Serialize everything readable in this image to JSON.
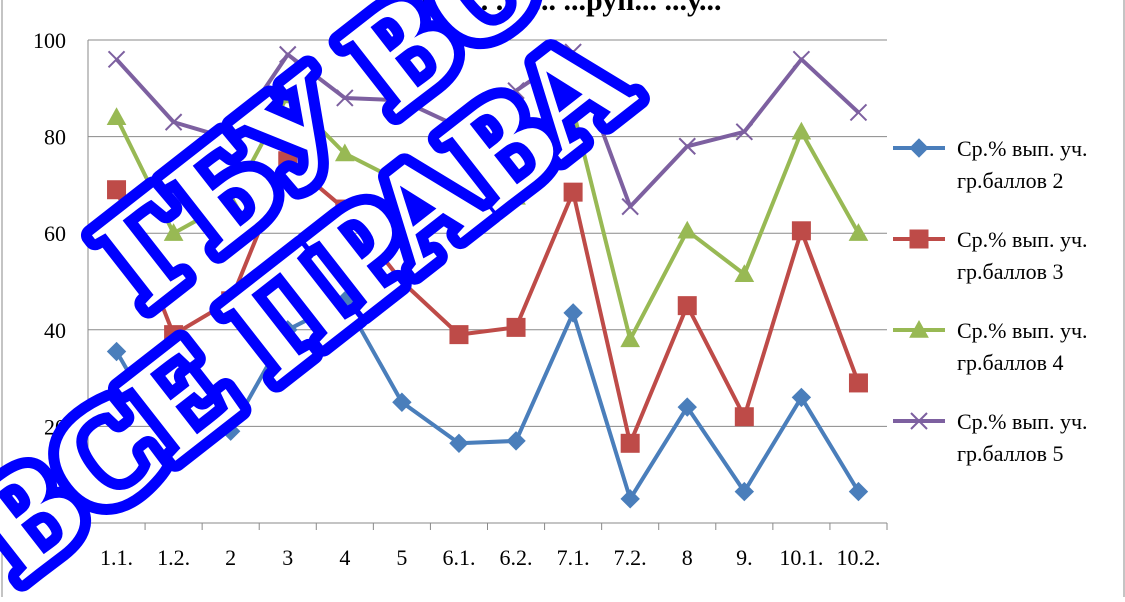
{
  "chart_data": {
    "type": "line",
    "title": "...ред... ...д... ...руп... ...у...",
    "xlabel": "",
    "ylabel": "",
    "ylim": [
      0,
      100
    ],
    "yticks": [
      0,
      20,
      40,
      60,
      80,
      100
    ],
    "grid": "horizontal",
    "legend_position": "right",
    "categories": [
      "1.1.",
      "1.2.",
      "2",
      "3",
      "4",
      "5",
      "6.1.",
      "6.2.",
      "7.1.",
      "7.2.",
      "8",
      "9.",
      "10.1.",
      "10.2."
    ],
    "series": [
      {
        "name_line1": "Ср.% вып. уч.",
        "name_line2": "гр.баллов 2",
        "color": "#4a7ebb",
        "marker": "diamond",
        "values": [
          35.5,
          15,
          19,
          40,
          46,
          25,
          16.5,
          17,
          43.5,
          5,
          24,
          6.5,
          26,
          6.5
        ]
      },
      {
        "name_line1": "Ср.% вып. уч.",
        "name_line2": "гр.баллов 3",
        "color": "#be4b48",
        "marker": "square",
        "values": [
          69,
          39,
          46,
          75,
          65,
          50,
          39,
          40.5,
          68.5,
          16.5,
          45,
          22,
          60.5,
          29
        ]
      },
      {
        "name_line1": "Ср.% вып. уч.",
        "name_line2": "гр.баллов 4",
        "color": "#98b954",
        "marker": "triangle",
        "values": [
          84,
          60,
          66.5,
          88.5,
          76.5,
          70.5,
          60,
          67.5,
          85.5,
          38,
          60.5,
          51.5,
          81,
          60
        ]
      },
      {
        "name_line1": "Ср.% вып. уч.",
        "name_line2": "гр.баллов 5",
        "color": "#7d60a0",
        "marker": "x",
        "values": [
          96,
          83,
          79.5,
          97,
          88,
          87.5,
          82,
          89.5,
          97.5,
          65.5,
          78,
          81,
          96,
          85
        ]
      }
    ]
  },
  "watermark": {
    "line1": "ГБУ ВО",
    "line2": "ВСЕ ПРАВА"
  }
}
